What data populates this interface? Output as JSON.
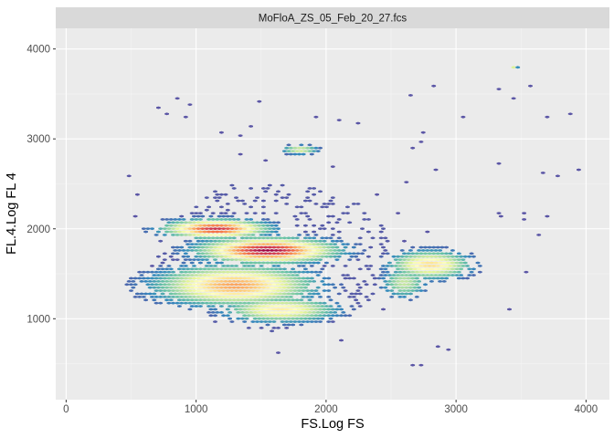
{
  "chart_data": {
    "type": "hexbin",
    "facet_title": "MoFloA_ZS_05_Feb_20_27.fcs",
    "xlabel": "FS.Log FS",
    "ylabel": "FL.4.Log FL 4",
    "xlim": [
      -80,
      4180
    ],
    "ylim": [
      100,
      4230
    ],
    "x_ticks": [
      0,
      1000,
      2000,
      3000,
      4000
    ],
    "y_ticks": [
      1000,
      2000,
      3000,
      4000
    ],
    "palette": [
      "#5E4FA2",
      "#3288BD",
      "#66C2A5",
      "#ABDDA4",
      "#E6F598",
      "#FFFFBF",
      "#FEE08B",
      "#FDAE61",
      "#F46D43",
      "#D53E4F",
      "#9E0142"
    ],
    "clusters": [
      {
        "name": "upper-left band",
        "center": [
          1150,
          2000
        ],
        "spread": [
          230,
          60
        ],
        "peak_density": 0.92
      },
      {
        "name": "main dense band",
        "center": [
          1550,
          1760
        ],
        "spread": [
          300,
          80
        ],
        "peak_density": 1.0
      },
      {
        "name": "lower-left mass",
        "center": [
          1300,
          1370
        ],
        "spread": [
          350,
          130
        ],
        "peak_density": 0.72
      },
      {
        "name": "lower body",
        "center": [
          1650,
          1100
        ],
        "spread": [
          250,
          80
        ],
        "peak_density": 0.55
      },
      {
        "name": "right-side cluster",
        "center": [
          2800,
          1600
        ],
        "spread": [
          180,
          90
        ],
        "peak_density": 0.6
      },
      {
        "name": "right-side lower tail",
        "center": [
          2600,
          1400
        ],
        "spread": [
          100,
          100
        ],
        "peak_density": 0.35
      },
      {
        "name": "upper island",
        "center": [
          1800,
          2880
        ],
        "spread": [
          80,
          30
        ],
        "peak_density": 0.42
      },
      {
        "name": "outlier at top-right",
        "center": [
          3450,
          3800
        ],
        "spread": [
          15,
          15
        ],
        "peak_density": 0.45
      }
    ]
  }
}
